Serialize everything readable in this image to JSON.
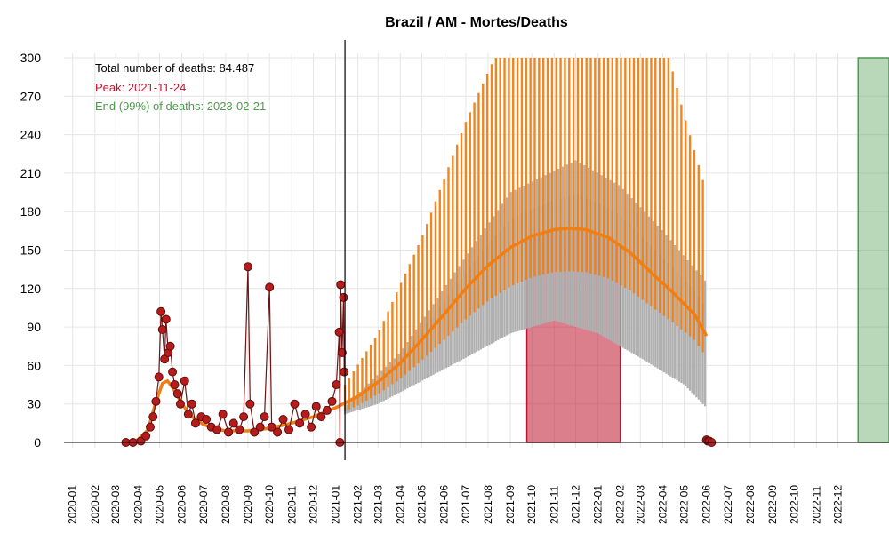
{
  "chart_data": {
    "type": "line",
    "title": "Brazil / AM - Mortes/Deaths",
    "xlabel": "",
    "ylabel": "",
    "x_axis_type": "date",
    "xlim": [
      "2019-12-20",
      "2023-02-10"
    ],
    "ylim": [
      0,
      300
    ],
    "y_ticks": [
      0,
      30,
      60,
      90,
      120,
      150,
      180,
      210,
      240,
      270,
      300
    ],
    "x_ticks": [
      "2020-01",
      "2020-02",
      "2020-03",
      "2020-04",
      "2020-05",
      "2020-06",
      "2020-07",
      "2020-08",
      "2020-09",
      "2020-10",
      "2020-11",
      "2020-12",
      "2021-01",
      "2021-02",
      "2021-03",
      "2021-04",
      "2021-05",
      "2021-06",
      "2021-07",
      "2021-08",
      "2021-09",
      "2021-10",
      "2021-11",
      "2021-12",
      "2022-01",
      "2022-02",
      "2022-03",
      "2022-04",
      "2022-05",
      "2022-06",
      "2022-07",
      "2022-08",
      "2022-09",
      "2022-10",
      "2022-11",
      "2022-12"
    ],
    "grid": true,
    "annotations": [
      {
        "text": "Total number of deaths: 84.487",
        "color": "#000000"
      },
      {
        "text": "Peak: 2021-11-24",
        "color": "#c0152f"
      },
      {
        "text": "End (99%) of deaths: 2023-02-21",
        "color": "#4f9a4f"
      }
    ],
    "today_line": "2021-01-14",
    "series": [
      {
        "kind": "observed_deaths",
        "color": "#b71c1c",
        "points": [
          [
            "2020-03-15",
            0
          ],
          [
            "2020-03-25",
            0
          ],
          [
            "2020-04-05",
            1
          ],
          [
            "2020-04-12",
            5
          ],
          [
            "2020-04-18",
            12
          ],
          [
            "2020-04-22",
            20
          ],
          [
            "2020-04-26",
            32
          ],
          [
            "2020-04-30",
            51
          ],
          [
            "2020-05-03",
            102
          ],
          [
            "2020-05-05",
            88
          ],
          [
            "2020-05-08",
            65
          ],
          [
            "2020-05-10",
            96
          ],
          [
            "2020-05-13",
            70
          ],
          [
            "2020-05-16",
            75
          ],
          [
            "2020-05-19",
            55
          ],
          [
            "2020-05-22",
            45
          ],
          [
            "2020-05-26",
            38
          ],
          [
            "2020-05-30",
            30
          ],
          [
            "2020-06-05",
            48
          ],
          [
            "2020-06-10",
            22
          ],
          [
            "2020-06-15",
            30
          ],
          [
            "2020-06-20",
            15
          ],
          [
            "2020-06-28",
            20
          ],
          [
            "2020-07-05",
            18
          ],
          [
            "2020-07-12",
            12
          ],
          [
            "2020-07-20",
            10
          ],
          [
            "2020-07-28",
            22
          ],
          [
            "2020-08-05",
            8
          ],
          [
            "2020-08-12",
            15
          ],
          [
            "2020-08-20",
            10
          ],
          [
            "2020-08-26",
            20
          ],
          [
            "2020-09-01",
            137
          ],
          [
            "2020-09-04",
            30
          ],
          [
            "2020-09-10",
            8
          ],
          [
            "2020-09-18",
            12
          ],
          [
            "2020-09-24",
            20
          ],
          [
            "2020-10-01",
            121
          ],
          [
            "2020-10-04",
            12
          ],
          [
            "2020-10-12",
            8
          ],
          [
            "2020-10-20",
            18
          ],
          [
            "2020-10-28",
            10
          ],
          [
            "2020-11-05",
            30
          ],
          [
            "2020-11-12",
            15
          ],
          [
            "2020-11-20",
            22
          ],
          [
            "2020-11-28",
            12
          ],
          [
            "2020-12-05",
            28
          ],
          [
            "2020-12-12",
            20
          ],
          [
            "2020-12-20",
            25
          ],
          [
            "2020-12-27",
            32
          ],
          [
            "2021-01-02",
            45
          ],
          [
            "2021-01-06",
            86
          ],
          [
            "2021-01-08",
            123
          ],
          [
            "2021-01-10",
            70
          ],
          [
            "2021-01-12",
            113
          ],
          [
            "2021-01-13",
            55
          ],
          [
            "2021-01-07",
            0
          ],
          [
            "2022-06-01",
            2
          ],
          [
            "2022-06-03",
            1
          ],
          [
            "2022-06-05",
            1
          ],
          [
            "2022-06-08",
            0
          ]
        ]
      },
      {
        "kind": "fitted_curve",
        "color": "#f07e12",
        "points": [
          [
            "2020-03-15",
            0
          ],
          [
            "2020-04-01",
            2
          ],
          [
            "2020-04-15",
            10
          ],
          [
            "2020-04-25",
            30
          ],
          [
            "2020-05-05",
            46
          ],
          [
            "2020-05-12",
            48
          ],
          [
            "2020-05-20",
            42
          ],
          [
            "2020-06-01",
            30
          ],
          [
            "2020-06-15",
            20
          ],
          [
            "2020-07-01",
            14
          ],
          [
            "2020-07-15",
            11
          ],
          [
            "2020-08-01",
            9
          ],
          [
            "2020-09-01",
            9
          ],
          [
            "2020-10-01",
            11
          ],
          [
            "2020-11-01",
            15
          ],
          [
            "2020-12-01",
            20
          ],
          [
            "2021-01-01",
            27
          ],
          [
            "2021-02-01",
            36
          ],
          [
            "2021-03-01",
            47
          ],
          [
            "2021-04-01",
            62
          ],
          [
            "2021-05-01",
            80
          ],
          [
            "2021-06-01",
            100
          ],
          [
            "2021-07-01",
            120
          ],
          [
            "2021-08-01",
            138
          ],
          [
            "2021-09-01",
            152
          ],
          [
            "2021-10-01",
            161
          ],
          [
            "2021-11-01",
            166
          ],
          [
            "2021-11-24",
            167
          ],
          [
            "2021-12-15",
            166
          ],
          [
            "2022-01-15",
            160
          ],
          [
            "2022-02-15",
            148
          ],
          [
            "2022-03-15",
            133
          ],
          [
            "2022-04-15",
            117
          ],
          [
            "2022-05-15",
            100
          ],
          [
            "2022-06-01",
            83
          ]
        ]
      },
      {
        "kind": "upper_band",
        "color": "#f07e12",
        "points": [
          [
            "2021-01-14",
            45
          ],
          [
            "2021-03-01",
            85
          ],
          [
            "2021-05-01",
            160
          ],
          [
            "2021-07-01",
            250
          ],
          [
            "2021-08-10",
            300
          ],
          [
            "2022-04-10",
            300
          ],
          [
            "2022-05-01",
            255
          ],
          [
            "2022-06-01",
            195
          ]
        ]
      },
      {
        "kind": "lower_band",
        "color": "#b0b0b0",
        "points": [
          [
            "2021-01-14",
            22
          ],
          [
            "2021-03-01",
            30
          ],
          [
            "2021-05-01",
            48
          ],
          [
            "2021-07-01",
            66
          ],
          [
            "2021-09-01",
            85
          ],
          [
            "2021-11-01",
            95
          ],
          [
            "2022-01-01",
            85
          ],
          [
            "2022-03-01",
            66
          ],
          [
            "2022-05-01",
            45
          ],
          [
            "2022-06-01",
            27
          ]
        ]
      },
      {
        "kind": "gray_band_top",
        "color": "#b0b0b0",
        "points": [
          [
            "2021-01-14",
            28
          ],
          [
            "2021-04-01",
            70
          ],
          [
            "2021-07-01",
            145
          ],
          [
            "2021-09-01",
            195
          ],
          [
            "2021-12-01",
            220
          ],
          [
            "2022-02-01",
            200
          ],
          [
            "2022-04-01",
            165
          ],
          [
            "2022-06-01",
            125
          ]
        ]
      }
    ],
    "peak_region": {
      "start": "2021-09-24",
      "end": "2022-02-01",
      "color": "#c0152f"
    },
    "end_region": {
      "start": "2022-12-29",
      "end": "2023-02-10",
      "color": "#4f9a4f",
      "height": 300
    }
  }
}
